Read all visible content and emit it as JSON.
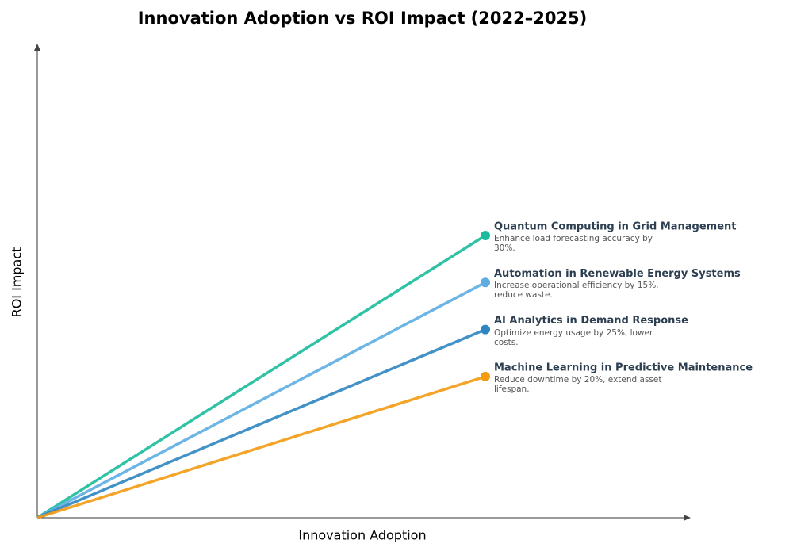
{
  "title": "Innovation Adoption vs ROI Impact (2022–2025)",
  "x_axis_label": "Innovation Adoption",
  "y_axis_label": "ROI Impact",
  "nodes": [
    {
      "label": "Quantum Computing in Grid Management",
      "description": "Enhance load forecasting accuracy by 30%.",
      "color": "#1abc9c"
    },
    {
      "label": "Automation in Renewable Energy Systems",
      "description": "Increase operational efficiency by 15%, reduce waste.",
      "color": "#5dade2"
    },
    {
      "label": "AI Analytics in Demand Response",
      "description": "Optimize energy usage by 25%, lower costs.",
      "color": "#2e86c1"
    },
    {
      "label": "Machine Learning in Predictive Maintenance",
      "description": "Reduce downtime by 20%, extend asset lifespan.",
      "color": "#f39c12"
    }
  ]
}
